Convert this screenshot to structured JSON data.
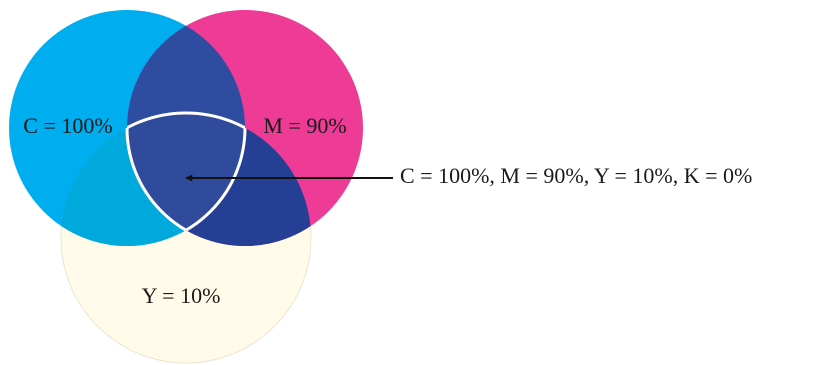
{
  "diagram": {
    "circles": [
      {
        "id": "cyan",
        "label": "C = 100%",
        "color": "#00aeef"
      },
      {
        "id": "magenta",
        "label": "M = 90%",
        "color": "#ed3b96"
      },
      {
        "id": "yellow",
        "label": "Y = 10%",
        "color": "#fffbe8"
      }
    ],
    "overlaps": {
      "cyan_magenta": {
        "color": "#2e4da0"
      },
      "cyan_yellow": {
        "color": "#00a9dc"
      },
      "magenta_yellow": {
        "color": "#243f93"
      },
      "center": {
        "color": "#304a9c",
        "outline_color": "#ffffff"
      }
    },
    "callout": {
      "text": "C = 100%, M = 90%, Y = 10%, K = 0%",
      "arrow_color": "#111111"
    }
  }
}
